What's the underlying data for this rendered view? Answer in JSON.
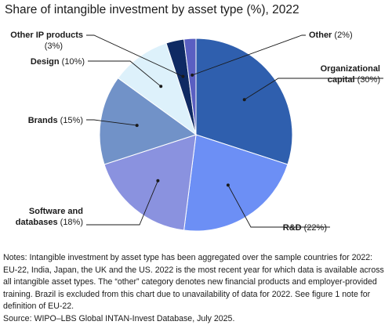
{
  "title": "Share of intangible investment by asset type (%), 2022",
  "chart_data": {
    "type": "pie",
    "title": "Share of intangible investment by asset type (%), 2022",
    "unit": "%",
    "slices": [
      {
        "label": "Organizational capital",
        "label_lines": [
          "Organizational",
          "capital"
        ],
        "value": 30,
        "value_text": "(30%)",
        "color": "#2f5fae"
      },
      {
        "label": "R&D",
        "label_lines": [
          "R&D"
        ],
        "value": 22,
        "value_text": "(22%)",
        "color": "#6c8ff5"
      },
      {
        "label": "Software and databases",
        "label_lines": [
          "Software and",
          "databases"
        ],
        "value": 18,
        "value_text": "(18%)",
        "color": "#8a92df"
      },
      {
        "label": "Brands",
        "label_lines": [
          "Brands"
        ],
        "value": 15,
        "value_text": "(15%)",
        "color": "#7192c8"
      },
      {
        "label": "Design",
        "label_lines": [
          "Design"
        ],
        "value": 10,
        "value_text": "(10%)",
        "color": "#ddf1fb"
      },
      {
        "label": "Other IP products",
        "label_lines": [
          "Other IP products"
        ],
        "value": 3,
        "value_text": "(3%)",
        "color": "#0f2a63"
      },
      {
        "label": "Other",
        "label_lines": [
          "Other"
        ],
        "value": 2,
        "value_text": "(2%)",
        "color": "#5a5fc2"
      }
    ]
  },
  "notes": {
    "text": "Notes: Intangible investment by asset type has been aggregated over the sample countries for 2022: EU-22, India, Japan, the UK and the US. 2022 is the most recent year for which data is available across all intangible asset types. The “other” category denotes new financial products and employer-provided training. Brazil is excluded from this chart due to unavailability of data for 2022. See figure 1 note for definition of EU-22.",
    "source": "Source: WIPO–LBS Global INTAN-Invest Database, July 2025."
  }
}
